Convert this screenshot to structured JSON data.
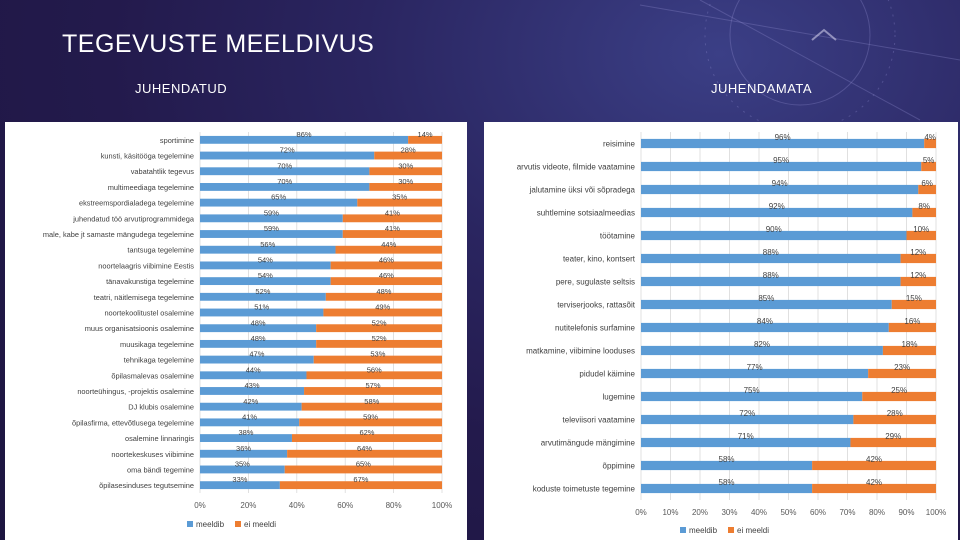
{
  "title": "TEGEVUSTE MEELDIVUS",
  "colors": {
    "liked": "#5b9bd5",
    "disliked": "#ed7d31"
  },
  "chart_data": [
    {
      "type": "bar",
      "orientation": "horizontal",
      "stacked": true,
      "title": "JUHENDATUD",
      "categories": [
        "sportimine",
        "kunsti, käsitööga tegelemine",
        "vabatahtlik tegevus",
        "multimeediaga tegelemine",
        "ekstreemspordialadega tegelemine",
        "juhendatud töö arvutiprogrammidega",
        "male, kabe jt samaste mängudega tegelemine",
        "tantsuga tegelemine",
        "noortelaagris viibimine Eestis",
        "tänavakunstiga tegelemine",
        "teatri, näitlemisega tegelemine",
        "noortekoolitustel osalemine",
        "muus organisatsioonis osalemine",
        "muusikaga tegelemine",
        "tehnikaga tegelemine",
        "õpilasmalevas osalemine",
        "noorteühingus, -projektis osalemine",
        "DJ klubis osalemine",
        "õpilasfirma, ettevõtlusega tegelemine",
        "osalemine linnaringis",
        "noortekeskuses viibimine",
        "oma bändi tegemine",
        "õpilasesinduses tegutsemine"
      ],
      "series": [
        {
          "name": "meeldib",
          "values": [
            86,
            72,
            70,
            70,
            65,
            59,
            59,
            56,
            54,
            54,
            52,
            51,
            48,
            48,
            47,
            44,
            43,
            42,
            41,
            38,
            36,
            35,
            33
          ]
        },
        {
          "name": "ei meeldi",
          "values": [
            14,
            28,
            30,
            30,
            35,
            41,
            41,
            44,
            46,
            46,
            48,
            49,
            52,
            52,
            53,
            56,
            57,
            58,
            59,
            62,
            64,
            65,
            67
          ]
        }
      ],
      "xlim": [
        0,
        100
      ],
      "xticks": [
        "0%",
        "20%",
        "40%",
        "60%",
        "80%",
        "100%"
      ],
      "legend": [
        "meeldib",
        "ei meeldi"
      ]
    },
    {
      "type": "bar",
      "orientation": "horizontal",
      "stacked": true,
      "title": "JUHENDAMATA",
      "categories": [
        "reisimine",
        "arvutis videote, filmide vaatamine",
        "jalutamine üksi või sõpradega",
        "suhtlemine sotsiaalmeedias",
        "töötamine",
        "teater, kino, kontsert",
        "pere, sugulaste seltsis",
        "terviserjooks, rattasõit",
        "nutitelefonis surfamine",
        "matkamine, viibimine looduses",
        "pidudel käimine",
        "lugemine",
        "televiisori vaatamine",
        "arvutimängude mängimine",
        "õppimine",
        "koduste toimetuste tegemine"
      ],
      "series": [
        {
          "name": "meeldib",
          "values": [
            96,
            95,
            94,
            92,
            90,
            88,
            88,
            85,
            84,
            82,
            77,
            75,
            72,
            71,
            58,
            58
          ]
        },
        {
          "name": "ei meeldi",
          "values": [
            4,
            5,
            6,
            8,
            10,
            12,
            12,
            15,
            16,
            18,
            23,
            25,
            28,
            29,
            42,
            42
          ]
        }
      ],
      "xlim": [
        0,
        100
      ],
      "xticks": [
        "0%",
        "10%",
        "20%",
        "30%",
        "40%",
        "50%",
        "60%",
        "70%",
        "80%",
        "90%",
        "100%"
      ],
      "legend": [
        "meeldib",
        "ei meeldi"
      ]
    }
  ]
}
